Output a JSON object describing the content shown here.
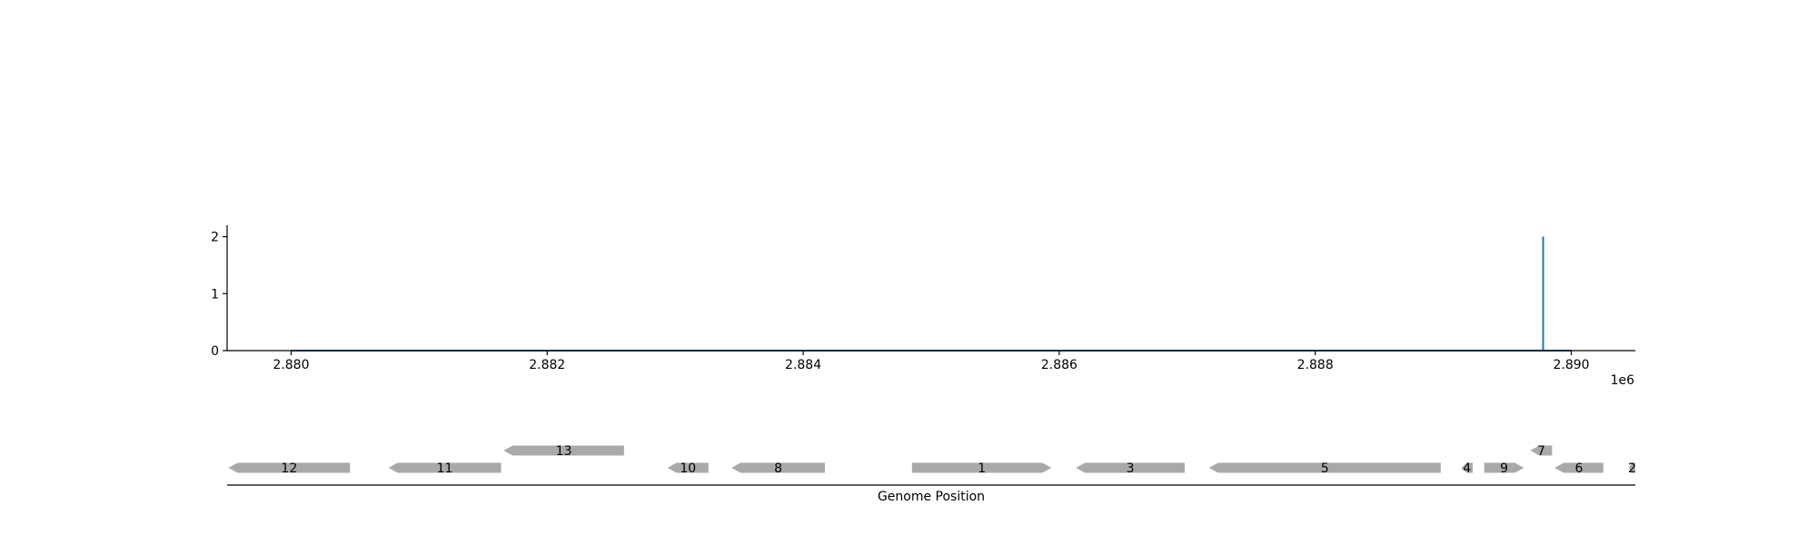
{
  "chart_data": [
    {
      "type": "line",
      "title": "",
      "xlabel": "",
      "ylabel": "",
      "x_offset_label": "1e6",
      "xlim": [
        2.8795,
        2.8905
      ],
      "ylim": [
        0,
        2.2
      ],
      "x_ticks": [
        2.88,
        2.882,
        2.884,
        2.886,
        2.888,
        2.89
      ],
      "x_tick_labels": [
        "2.880",
        "2.882",
        "2.884",
        "2.886",
        "2.888",
        "2.890"
      ],
      "y_ticks": [
        0,
        1,
        2
      ],
      "y_tick_labels": [
        "0",
        "1",
        "2"
      ],
      "grid": false,
      "legend": "none",
      "series": [
        {
          "color": "#1f77b4",
          "x": [
            2.88,
            2.88978,
            2.88978,
            2.88978,
            2.88978,
            2.89
          ],
          "y": [
            0,
            0,
            0,
            2,
            0,
            0
          ]
        }
      ]
    },
    {
      "type": "gene_map",
      "xlabel": "Genome Position",
      "xlim": [
        2.8795,
        2.8905
      ],
      "genes": [
        {
          "label": "12",
          "start": 2.87951,
          "end": 2.88046,
          "strand": -1,
          "row": 0
        },
        {
          "label": "11",
          "start": 2.88076,
          "end": 2.88164,
          "strand": -1,
          "row": 0
        },
        {
          "label": "13",
          "start": 2.88166,
          "end": 2.8826,
          "strand": -1,
          "row": 1
        },
        {
          "label": "10",
          "start": 2.88294,
          "end": 2.88326,
          "strand": -1,
          "row": 0
        },
        {
          "label": "8",
          "start": 2.88344,
          "end": 2.88417,
          "strand": -1,
          "row": 0
        },
        {
          "label": "1",
          "start": 2.88485,
          "end": 2.88594,
          "strand": 1,
          "row": 0
        },
        {
          "label": "3",
          "start": 2.88613,
          "end": 2.88698,
          "strand": -1,
          "row": 0
        },
        {
          "label": "5",
          "start": 2.88717,
          "end": 2.88898,
          "strand": -1,
          "row": 0
        },
        {
          "label": "4",
          "start": 2.88914,
          "end": 2.88923,
          "strand": -1,
          "row": 0
        },
        {
          "label": "9",
          "start": 2.88932,
          "end": 2.88963,
          "strand": 1,
          "row": 0
        },
        {
          "label": "7",
          "start": 2.88968,
          "end": 2.88985,
          "strand": -1,
          "row": 1
        },
        {
          "label": "6",
          "start": 2.88987,
          "end": 2.89025,
          "strand": -1,
          "row": 0
        },
        {
          "label": "2",
          "start": 2.89045,
          "end": 2.8905,
          "strand": -1,
          "row": 0
        }
      ],
      "gene_color": "#a9a9a9"
    }
  ]
}
